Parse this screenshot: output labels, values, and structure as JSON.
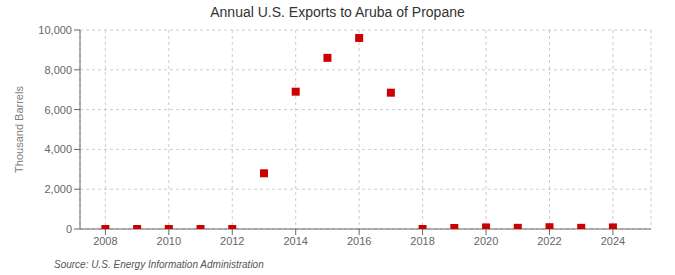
{
  "chart_data": {
    "type": "scatter",
    "title": "Annual U.S. Exports to Aruba of Propane",
    "ylabel": "Thousand Barrels",
    "annotations": [
      "Source: U.S. Energy Information Administration"
    ],
    "x": [
      2008,
      2009,
      2010,
      2011,
      2012,
      2013,
      2014,
      2015,
      2016,
      2017,
      2018,
      2019,
      2020,
      2021,
      2022,
      2023,
      2024
    ],
    "values": [
      0,
      0,
      0,
      0,
      0,
      2800,
      6900,
      8600,
      9600,
      6850,
      0,
      50,
      80,
      60,
      90,
      60,
      80
    ],
    "color": "#cc0000",
    "marker": "square",
    "grid": true,
    "xlim": [
      2007.2,
      2025.2
    ],
    "xticks": [
      2008,
      2010,
      2012,
      2014,
      2016,
      2018,
      2020,
      2022,
      2024
    ],
    "ylim": [
      0,
      10000
    ],
    "yticks": [
      0,
      {
        "value": 2000,
        "label": "2,000"
      },
      {
        "value": 4000,
        "label": "4,000"
      },
      {
        "value": 6000,
        "label": "6,000"
      },
      {
        "value": 8000,
        "label": "8,000"
      },
      {
        "value": 10000,
        "label": "10,000"
      }
    ]
  }
}
